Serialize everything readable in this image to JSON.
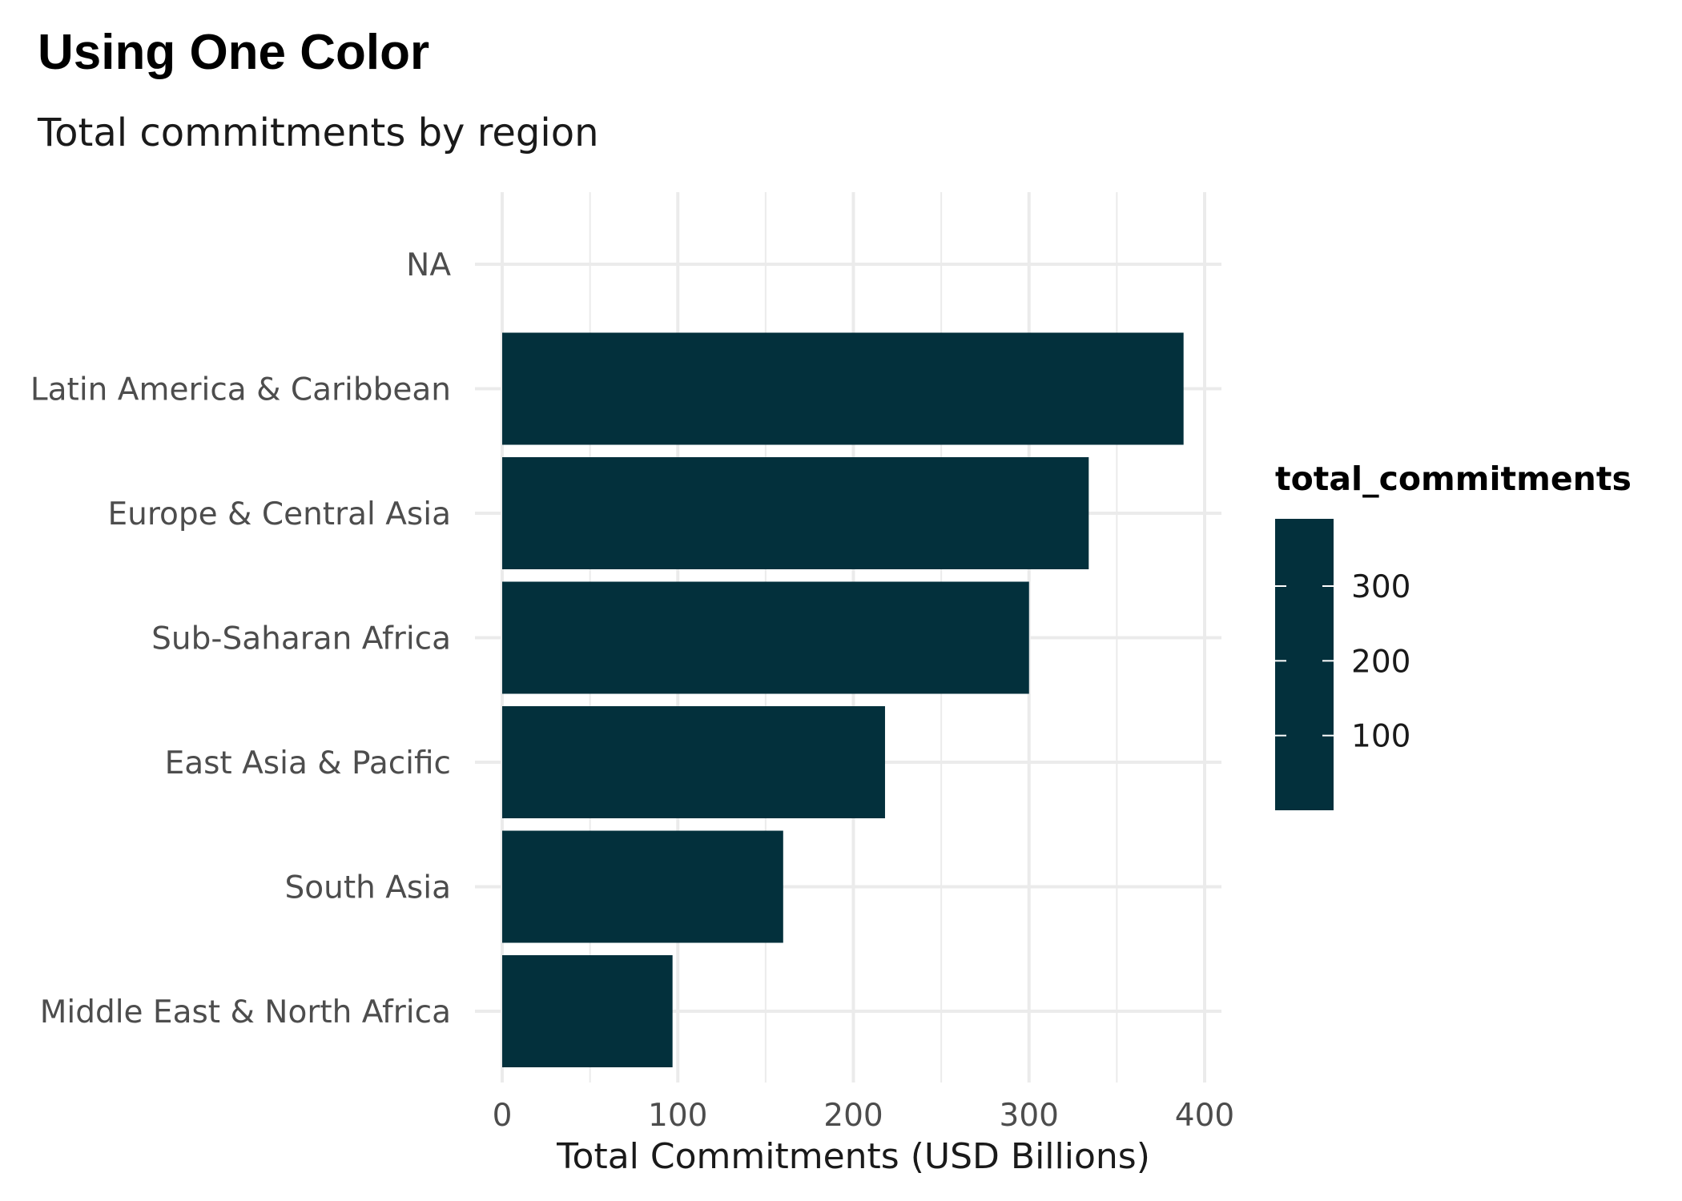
{
  "chart_data": {
    "type": "bar",
    "orientation": "horizontal",
    "title": "Using One Color",
    "subtitle": "Total commitments by region",
    "xlabel": "Total Commitments (USD Billions)",
    "ylabel": "",
    "categories": [
      "NA",
      "Latin America & Caribbean",
      "Europe & Central Asia",
      "Sub-Saharan Africa",
      "East Asia & Pacific",
      "South Asia",
      "Middle East & North Africa"
    ],
    "values": [
      null,
      388,
      334,
      300,
      218,
      160,
      97
    ],
    "xlim": [
      0,
      410
    ],
    "xticks": [
      "0",
      "100",
      "200",
      "300",
      "400"
    ],
    "xtick_values": [
      0,
      100,
      200,
      300,
      400
    ],
    "grid": true,
    "bar_color": "#03303c",
    "grid_color": "#ebebeb",
    "legend": {
      "title": "total_commitments",
      "placement": "right",
      "ticks": [
        "300",
        "200",
        "100"
      ],
      "tick_values": [
        300,
        200,
        100
      ],
      "range": [
        0,
        390
      ]
    }
  }
}
